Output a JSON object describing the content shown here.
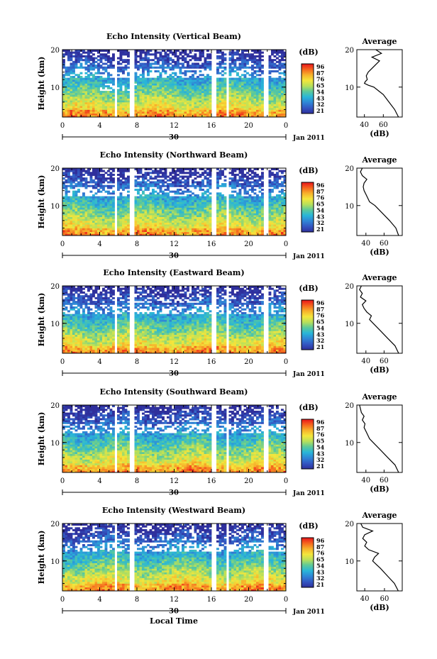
{
  "figure": {
    "date_label": "Jan 2011",
    "xlabel_bottom": "Local Time",
    "colorbar_unit": "(dB)",
    "colorbar_ticks": [
      "96",
      "87",
      "76",
      "65",
      "54",
      "43",
      "32",
      "21"
    ],
    "colorbar_colors": [
      "#e8151b",
      "#f5651e",
      "#f7b12b",
      "#f4e63c",
      "#b8e05a",
      "#5cc99a",
      "#29b6d8",
      "#2f86d6",
      "#3357c2",
      "#2f2f9c"
    ],
    "profile_title": "Average",
    "profile_xlabel": "(dB)",
    "ylabel": "Height (km)"
  },
  "chart_data": [
    {
      "type": "heatmap",
      "title": "Echo Intensity (Vertical Beam)",
      "ylabel": "Height (km)",
      "x_ticks": [
        "0",
        "4",
        "8",
        "12",
        "16",
        "20",
        "0"
      ],
      "x_range_hours": [
        0,
        24
      ],
      "y_ticks": [
        "10",
        "20"
      ],
      "y_range_km": [
        2,
        20
      ],
      "date_tick": "30",
      "gaps_hours": [
        [
          5.5,
          5.9
        ],
        [
          7.2,
          7.6
        ],
        [
          16.0,
          16.6
        ],
        [
          17.6,
          17.9
        ],
        [
          21.6,
          22.0
        ]
      ],
      "profile": {
        "title": "Average",
        "xlabel": "(dB)",
        "x_ticks": [
          "40",
          "60"
        ],
        "x_range": [
          32,
          80
        ],
        "y_ticks": [
          "10",
          "20"
        ],
        "heights_km": [
          2,
          4,
          6,
          8,
          9,
          10,
          10.5,
          11,
          11.5,
          12,
          13,
          14,
          15,
          16,
          17,
          18,
          19,
          20
        ],
        "values_db": [
          76,
          72,
          66,
          60,
          55,
          50,
          44,
          40,
          41,
          43,
          42,
          44,
          48,
          52,
          56,
          48,
          58,
          52
        ]
      }
    },
    {
      "type": "heatmap",
      "title": "Echo Intensity (Northward Beam)",
      "ylabel": "Height (km)",
      "x_ticks": [
        "0",
        "4",
        "8",
        "12",
        "16",
        "20",
        "0"
      ],
      "x_range_hours": [
        0,
        24
      ],
      "y_ticks": [
        "10",
        "20"
      ],
      "y_range_km": [
        2,
        20
      ],
      "date_tick": "30",
      "gaps_hours": [
        [
          5.5,
          5.9
        ],
        [
          7.2,
          7.6
        ],
        [
          16.0,
          16.6
        ],
        [
          17.6,
          17.9
        ],
        [
          21.6,
          22.0
        ]
      ],
      "profile": {
        "title": "Average",
        "xlabel": "(dB)",
        "x_ticks": [
          "40",
          "60"
        ],
        "x_range": [
          30,
          80
        ],
        "y_ticks": [
          "10",
          "20"
        ],
        "heights_km": [
          2,
          4,
          6,
          8,
          10,
          11,
          12,
          13,
          14,
          15,
          16,
          17,
          18,
          19,
          20
        ],
        "values_db": [
          76,
          73,
          66,
          58,
          50,
          44,
          42,
          40,
          38,
          37,
          38,
          41,
          36,
          34,
          36
        ]
      }
    },
    {
      "type": "heatmap",
      "title": "Echo Intensity (Eastward Beam)",
      "ylabel": "Height (km)",
      "x_ticks": [
        "0",
        "4",
        "8",
        "12",
        "16",
        "20",
        "0"
      ],
      "x_range_hours": [
        0,
        24
      ],
      "y_ticks": [
        "10",
        "20"
      ],
      "y_range_km": [
        2,
        20
      ],
      "date_tick": "30",
      "gaps_hours": [
        [
          5.5,
          5.9
        ],
        [
          7.2,
          7.6
        ],
        [
          16.0,
          16.6
        ],
        [
          17.6,
          17.9
        ],
        [
          21.6,
          22.0
        ]
      ],
      "profile": {
        "title": "Average",
        "xlabel": "(dB)",
        "x_ticks": [
          "40",
          "60"
        ],
        "x_range": [
          30,
          80
        ],
        "y_ticks": [
          "10",
          "20"
        ],
        "heights_km": [
          2,
          4,
          6,
          8,
          10,
          11,
          12,
          13,
          14,
          15,
          16,
          17,
          18,
          19,
          20
        ],
        "values_db": [
          76,
          72,
          64,
          56,
          48,
          44,
          46,
          41,
          38,
          36,
          40,
          34,
          36,
          33,
          35
        ]
      }
    },
    {
      "type": "heatmap",
      "title": "Echo Intensity (Southward Beam)",
      "ylabel": "Height (km)",
      "x_ticks": [
        "0",
        "4",
        "8",
        "12",
        "16",
        "20",
        "0"
      ],
      "x_range_hours": [
        0,
        24
      ],
      "y_ticks": [
        "10",
        "20"
      ],
      "y_range_km": [
        2,
        20
      ],
      "date_tick": "30",
      "gaps_hours": [
        [
          5.5,
          5.9
        ],
        [
          7.2,
          7.6
        ],
        [
          16.0,
          16.6
        ],
        [
          17.6,
          17.9
        ],
        [
          21.6,
          22.0
        ]
      ],
      "profile": {
        "title": "Average",
        "xlabel": "(dB)",
        "x_ticks": [
          "40",
          "60"
        ],
        "x_range": [
          30,
          80
        ],
        "y_ticks": [
          "10",
          "20"
        ],
        "heights_km": [
          2,
          4,
          6,
          8,
          10,
          11,
          12,
          13,
          14,
          15,
          16,
          17,
          18,
          19,
          20
        ],
        "values_db": [
          76,
          72,
          64,
          56,
          48,
          44,
          42,
          40,
          38,
          39,
          36,
          38,
          35,
          34,
          33
        ]
      }
    },
    {
      "type": "heatmap",
      "title": "Echo Intensity (Westward Beam)",
      "ylabel": "Height (km)",
      "x_ticks": [
        "0",
        "4",
        "8",
        "12",
        "16",
        "20",
        "0"
      ],
      "x_range_hours": [
        0,
        24
      ],
      "y_ticks": [
        "10",
        "20"
      ],
      "y_range_km": [
        2,
        20
      ],
      "date_tick": "30",
      "gaps_hours": [
        [
          5.5,
          5.9
        ],
        [
          7.2,
          7.6
        ],
        [
          16.0,
          16.6
        ],
        [
          17.6,
          17.9
        ],
        [
          21.6,
          22.0
        ]
      ],
      "profile": {
        "title": "Average",
        "xlabel": "(dB)",
        "x_ticks": [
          "40",
          "60"
        ],
        "x_range": [
          32,
          78
        ],
        "y_ticks": [
          "10",
          "20"
        ],
        "heights_km": [
          2,
          4,
          6,
          8,
          9,
          10,
          11,
          12,
          13,
          14,
          15,
          16,
          17,
          18,
          19,
          20
        ],
        "values_db": [
          74,
          70,
          63,
          56,
          52,
          48,
          50,
          54,
          44,
          40,
          42,
          38,
          40,
          48,
          38,
          36
        ]
      }
    }
  ]
}
